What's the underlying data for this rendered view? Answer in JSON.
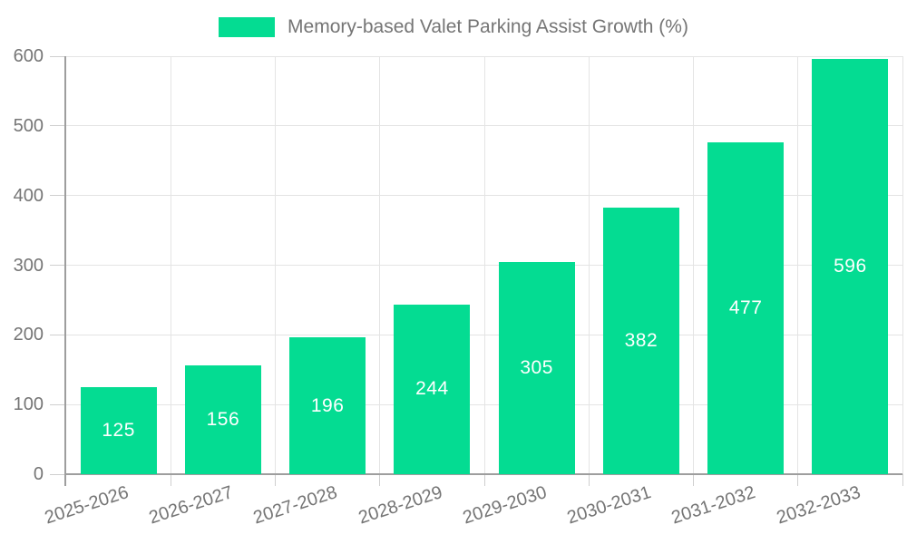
{
  "chart_data": {
    "type": "bar",
    "title": "",
    "legend_label": "Memory-based Valet Parking Assist Growth (%)",
    "legend_position": "top",
    "categories": [
      "2025-2026",
      "2026-2027",
      "2027-2028",
      "2028-2029",
      "2029-2030",
      "2030-2031",
      "2031-2032",
      "2032-2033"
    ],
    "series": [
      {
        "name": "Memory-based Valet Parking Assist Growth (%)",
        "values": [
          125,
          156,
          196,
          244,
          305,
          382,
          477,
          596
        ]
      }
    ],
    "value_labels_shown": true,
    "xlabel": "",
    "ylabel": "",
    "ylim": [
      0,
      600
    ],
    "yticks": [
      0,
      100,
      200,
      300,
      400,
      500,
      600
    ],
    "grid": true,
    "colors": {
      "bar": "#04DC92",
      "value_label": "#FFFFFF",
      "grid_line": "#E4E4E4",
      "axis_line": "#9E9E9E",
      "tick_mark": "#CFCFCF",
      "axis_text": "#757575",
      "background": "#FFFFFF"
    }
  }
}
